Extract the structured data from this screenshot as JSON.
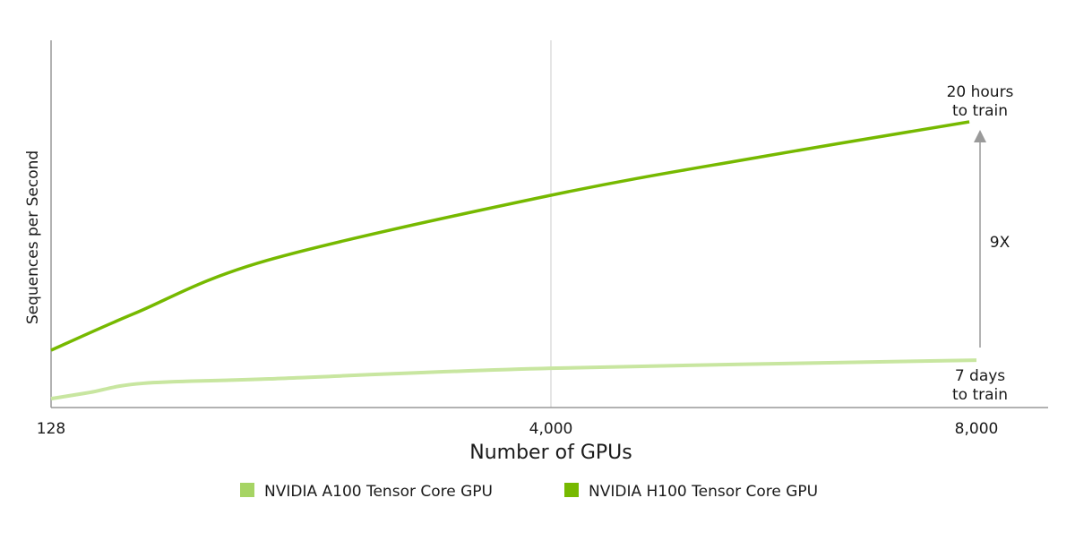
{
  "chart_data": {
    "type": "line",
    "title": "",
    "xlabel": "Number of GPUs",
    "ylabel": "Sequences per Second",
    "x_ticks": [
      128,
      4000,
      8000
    ],
    "x_tick_labels": [
      "128",
      "4,000",
      "8,000"
    ],
    "ylim": [
      0,
      10
    ],
    "y_ticks_shown": false,
    "grid": "vertical line at 4,000 only",
    "legend_position": "bottom",
    "series": [
      {
        "name": "NVIDIA A100 Tensor Core GPU",
        "color": "#c8e6a0",
        "legend_color": "#a6d464",
        "x": [
          128,
          426,
          843,
          1814,
          4000,
          8000
        ],
        "y": [
          0.24,
          0.41,
          0.66,
          0.78,
          1.07,
          1.29
        ]
      },
      {
        "name": "NVIDIA H100 Tensor Core GPU",
        "color": "#76b900",
        "legend_color": "#76b900",
        "x": [
          128,
          773,
          1814,
          4000,
          5979,
          7933
        ],
        "y": [
          1.56,
          2.56,
          4.02,
          5.78,
          6.83,
          7.78
        ]
      }
    ],
    "annotations": {
      "h100_label": [
        "20 hours",
        "to train"
      ],
      "a100_label": [
        "7 days",
        "to train"
      ],
      "speedup_label": "9X"
    }
  }
}
